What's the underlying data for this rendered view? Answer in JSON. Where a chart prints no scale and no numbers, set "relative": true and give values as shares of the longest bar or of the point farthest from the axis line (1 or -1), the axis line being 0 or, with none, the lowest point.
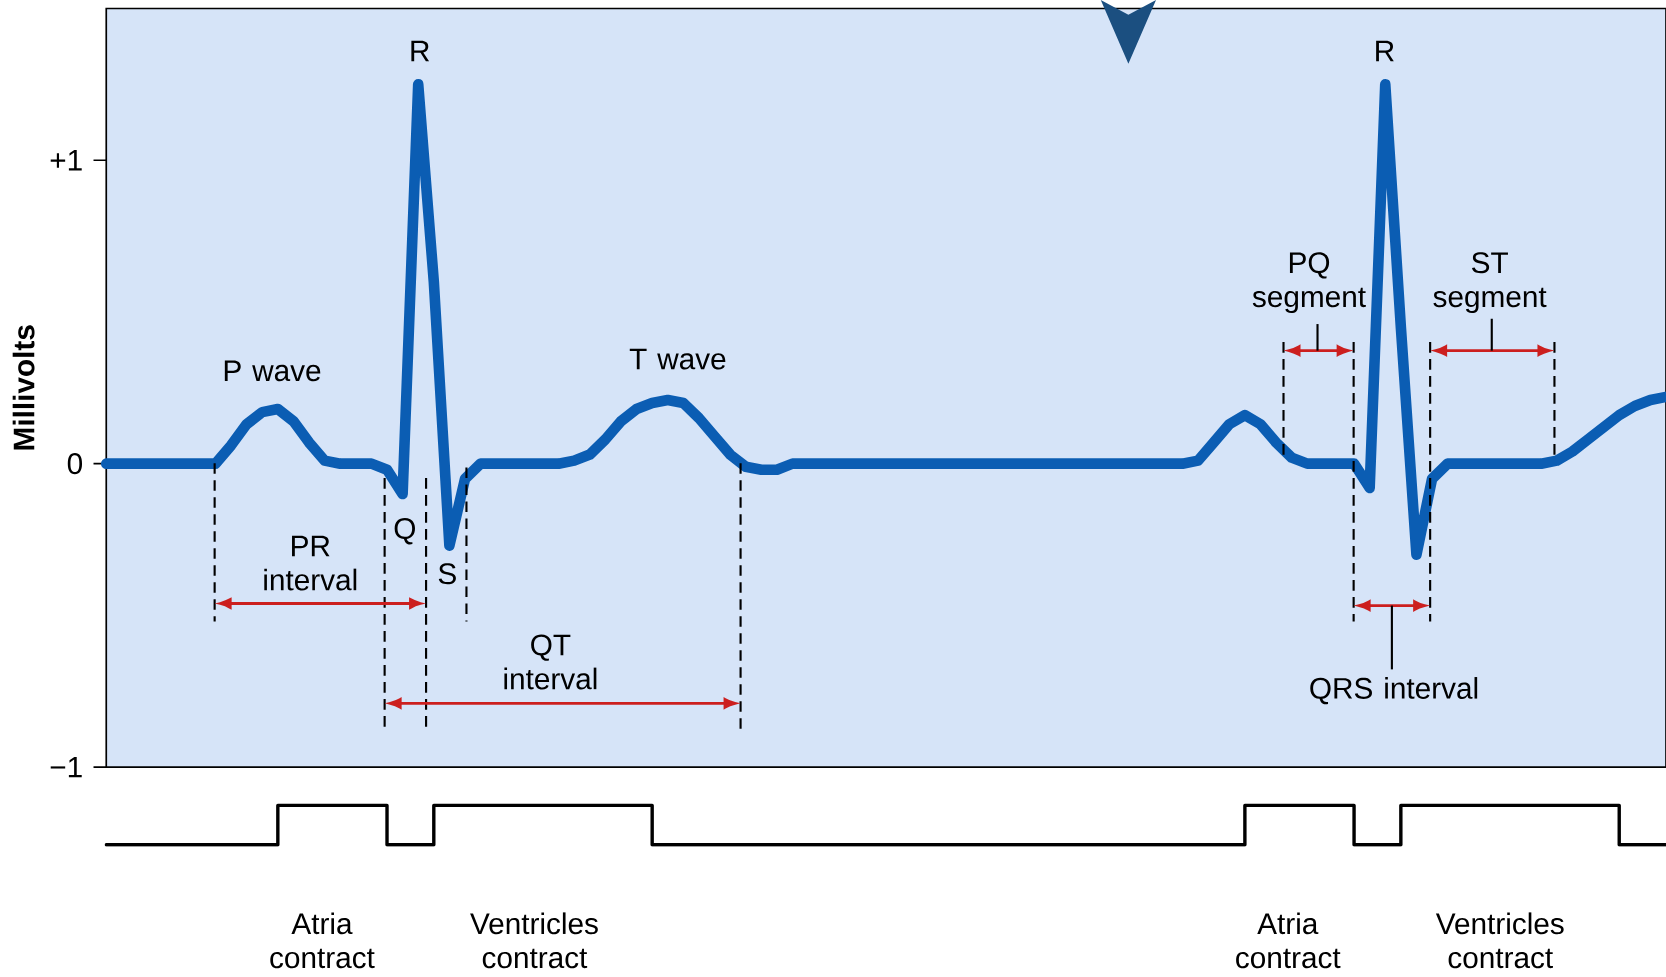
{
  "chart_data": [
    {
      "type": "line",
      "ylabel": "Millivolts",
      "categories": [
        null,
        null,
        null,
        null,
        null,
        null,
        null,
        null,
        null,
        null,
        null,
        null,
        null,
        null,
        null,
        null,
        null,
        null,
        null,
        null,
        null,
        null,
        null,
        null,
        null,
        null,
        null,
        null,
        null,
        null,
        null,
        null,
        null,
        null,
        null,
        null,
        null,
        null,
        null,
        null,
        null,
        null,
        null,
        null,
        null,
        null,
        null,
        null,
        null,
        null,
        null,
        null,
        null,
        null,
        null,
        null,
        null,
        null,
        null,
        null,
        null,
        null,
        null,
        null,
        null,
        null,
        null,
        null,
        null,
        null,
        null,
        null,
        null,
        null,
        null,
        null,
        null,
        null,
        null,
        null,
        null,
        null,
        null,
        null,
        null,
        null,
        null,
        null,
        null,
        null,
        null,
        null,
        null,
        null,
        null,
        null,
        null,
        null,
        null,
        null,
        null
      ],
      "series": [
        {
          "color": "#0b5db3",
          "values": [
            0,
            0,
            0,
            0,
            0,
            0,
            0,
            0,
            0.06,
            0.13,
            0.17,
            0.18,
            0.14,
            0.07,
            0.01,
            0,
            0,
            0,
            -0.02,
            -0.1,
            1.25,
            0.6,
            -0.27,
            -0.05,
            0,
            0,
            0,
            0,
            0,
            0,
            0.01,
            0.03,
            0.08,
            0.14,
            0.18,
            0.2,
            0.21,
            0.2,
            0.15,
            0.09,
            0.03,
            -0.01,
            -0.02,
            -0.02,
            0,
            0,
            0,
            0,
            0,
            0,
            0,
            0,
            0,
            0,
            0,
            0,
            0,
            0,
            0,
            0,
            0,
            0,
            0,
            0,
            0,
            0,
            0,
            0,
            0,
            0,
            0.01,
            0.07,
            0.13,
            0.16,
            0.13,
            0.07,
            0.02,
            0,
            0,
            0,
            0,
            -0.08,
            1.25,
            0.45,
            -0.3,
            -0.05,
            0,
            0,
            0,
            0,
            0,
            0,
            0,
            0.01,
            0.04,
            0.08,
            0.12,
            0.16,
            0.19,
            0.21,
            0.22
          ]
        }
      ],
      "ylim": [
        -1,
        1.5
      ],
      "yticks": [
        {
          "value": 1,
          "label": "+1"
        },
        0,
        {
          "value": -1,
          "label": "−1"
        }
      ],
      "tick_labels": "y",
      "annotations": [
        "R",
        "R",
        "P wave",
        "T wave",
        "Q",
        "S",
        "PR interval",
        "QT interval",
        "PQ segment",
        "ST segment",
        "QRS interval"
      ]
    },
    {
      "type": "step",
      "relative": true,
      "categories": [
        null,
        null,
        null,
        null,
        null,
        null,
        null,
        null,
        null,
        null,
        null,
        null,
        null,
        null,
        null,
        null,
        null,
        null,
        null,
        null,
        null,
        null,
        null,
        null,
        null,
        null,
        null,
        null,
        null,
        null,
        null,
        null,
        null,
        null,
        null,
        null,
        null,
        null,
        null,
        null,
        null,
        null,
        null,
        null,
        null,
        null,
        null,
        null,
        null,
        null,
        null,
        null,
        null,
        null,
        null,
        null,
        null,
        null,
        null,
        null,
        null,
        null,
        null,
        null,
        null,
        null,
        null,
        null,
        null,
        null,
        null,
        null,
        null,
        null,
        null,
        null,
        null,
        null,
        null,
        null,
        null,
        null,
        null,
        null,
        null,
        null,
        null,
        null,
        null,
        null,
        null,
        null,
        null,
        null,
        null,
        null,
        null,
        null,
        null,
        null,
        null
      ],
      "color": "#000000",
      "values": [
        0,
        0,
        0,
        0,
        0,
        0,
        0,
        0,
        0,
        0,
        0,
        1,
        1,
        1,
        1,
        1,
        1,
        1,
        0,
        0,
        0,
        1,
        1,
        1,
        1,
        1,
        1,
        1,
        1,
        1,
        1,
        1,
        1,
        1,
        1,
        0,
        0,
        0,
        0,
        0,
        0,
        0,
        0,
        0,
        0,
        0,
        0,
        0,
        0,
        0,
        0,
        0,
        0,
        0,
        0,
        0,
        0,
        0,
        0,
        0,
        0,
        0,
        0,
        0,
        0,
        0,
        0,
        0,
        0,
        0,
        0,
        0,
        0,
        1,
        1,
        1,
        1,
        1,
        1,
        1,
        0,
        0,
        0,
        1,
        1,
        1,
        1,
        1,
        1,
        1,
        1,
        1,
        1,
        1,
        1,
        1,
        1,
        0,
        0,
        0,
        0
      ],
      "tick_labels": false,
      "annotations": [
        "Atria contract",
        "Ventricles contract",
        "Atria contract",
        "Ventricles contract"
      ]
    }
  ]
}
